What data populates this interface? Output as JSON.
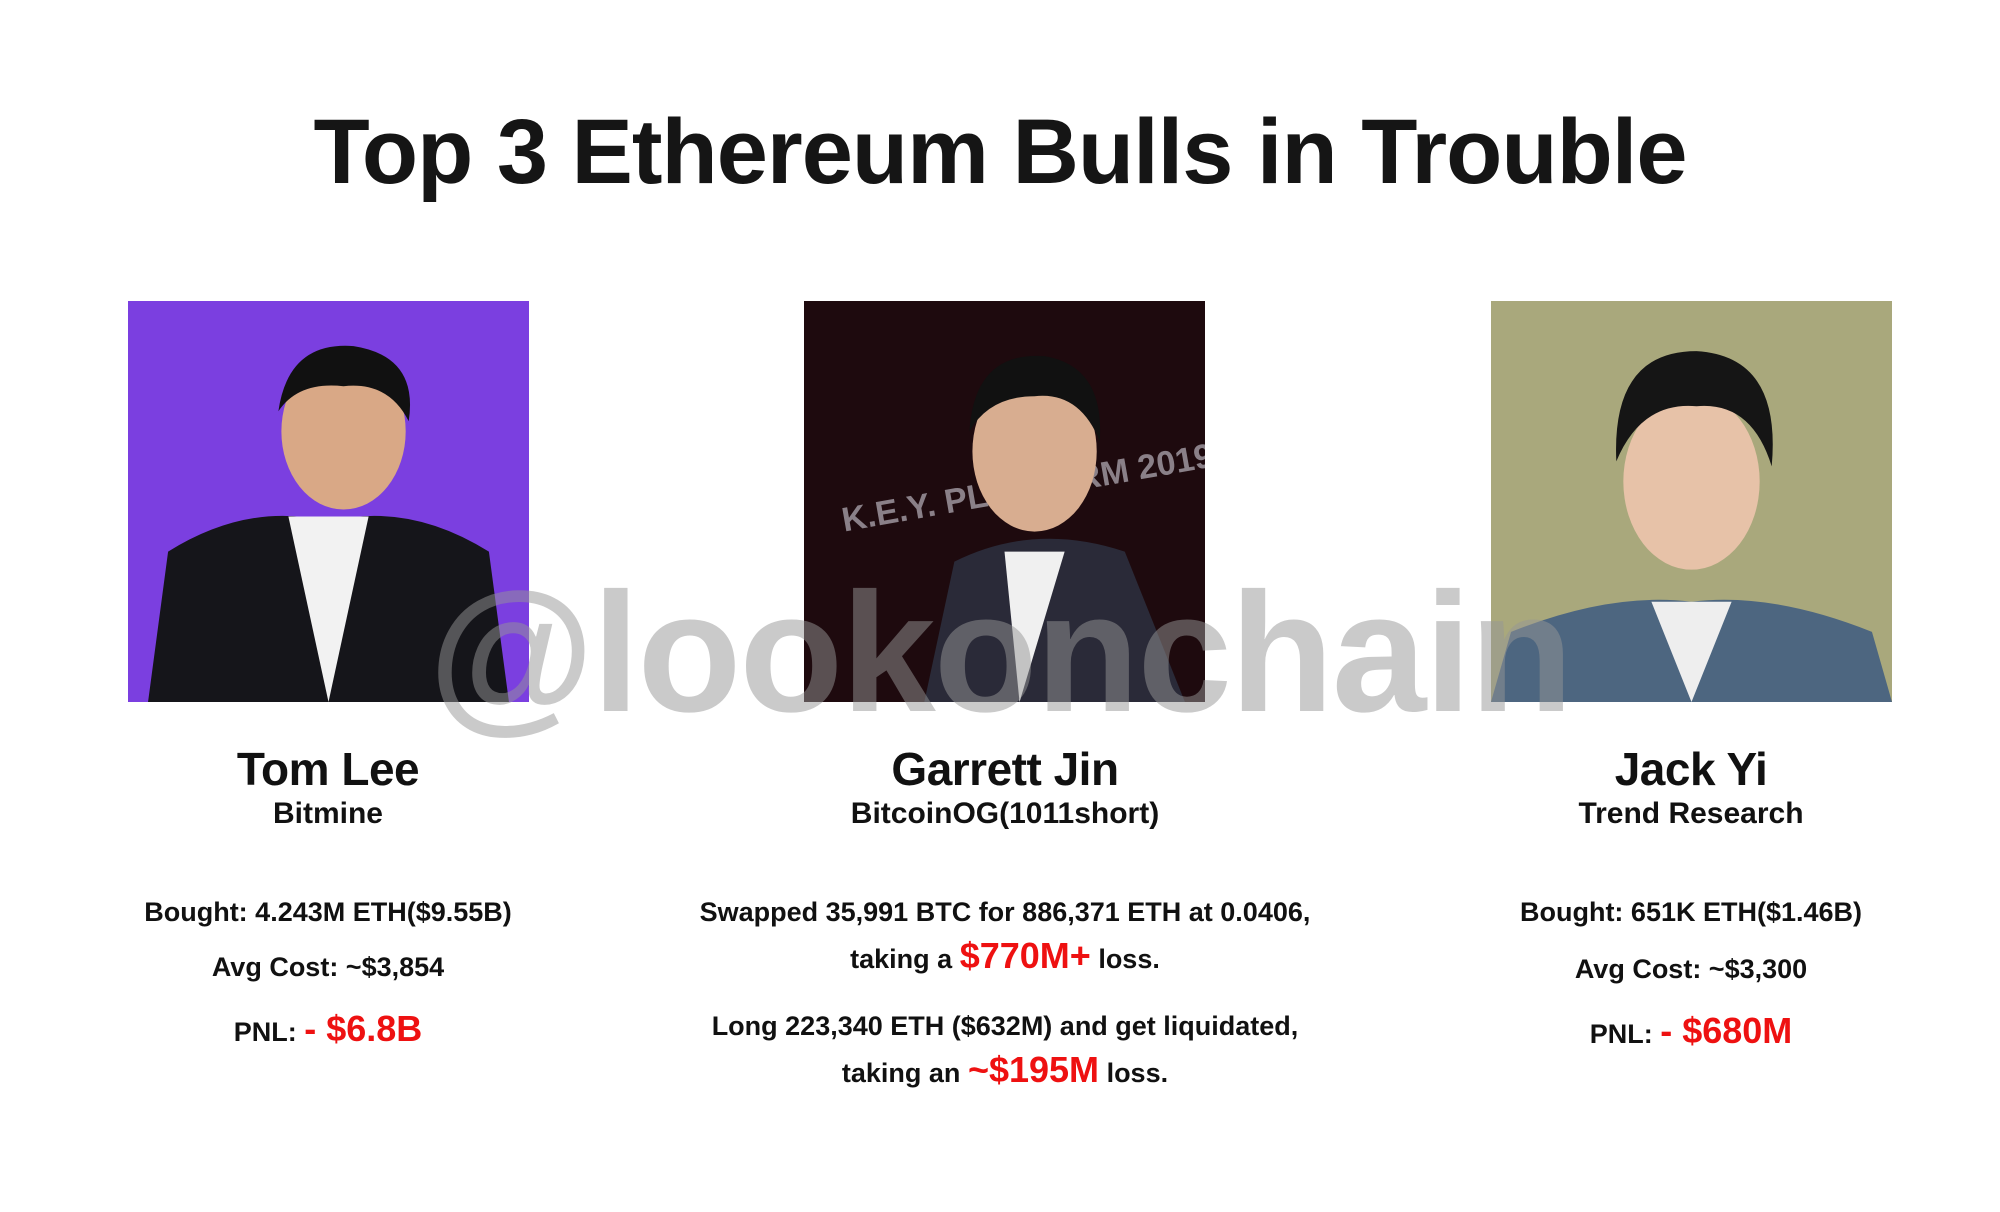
{
  "title": "Top 3 Ethereum Bulls in Trouble",
  "watermark": "@lookonchain",
  "colors": {
    "loss_red": "#ee1111",
    "photo1_bg": "#7b3fe0",
    "photo2_bg": "#1e0a0e",
    "photo3_bg": "#a9a87c"
  },
  "people": [
    {
      "name": "Tom Lee",
      "org": "Bitmine",
      "bought": "Bought: 4.243M ETH($9.55B)",
      "avg_cost": "Avg Cost: ~$3,854",
      "pnl_label": "PNL:",
      "pnl_value": "- $6.8B"
    },
    {
      "name": "Garrett Jin",
      "org": "BitcoinOG(1011short)",
      "line1": "Swapped 35,991 BTC for 886,371 ETH at 0.0406,",
      "line2_pre": "taking a",
      "line2_value": "$770M+",
      "line2_post": "loss.",
      "line3": "Long 223,340 ETH ($632M) and get liquidated,",
      "line4_pre": "taking an",
      "line4_value": "~$195M",
      "line4_post": "loss.",
      "photo_backdrop_text": "K.E.Y. PLATFORM 2019"
    },
    {
      "name": "Jack Yi",
      "org": "Trend Research",
      "bought": "Bought: 651K ETH($1.46B)",
      "avg_cost": "Avg Cost: ~$3,300",
      "pnl_label": "PNL:",
      "pnl_value": "- $680M"
    }
  ]
}
